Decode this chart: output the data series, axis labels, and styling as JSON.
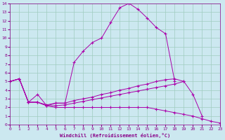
{
  "xlabel": "Windchill (Refroidissement éolien,°C)",
  "background_color": "#cce8f0",
  "grid_color": "#a0ccc0",
  "line_color": "#aa00aa",
  "xlim": [
    0,
    23
  ],
  "ylim": [
    0,
    14
  ],
  "xticks": [
    0,
    1,
    2,
    3,
    4,
    5,
    6,
    7,
    8,
    9,
    10,
    11,
    12,
    13,
    14,
    15,
    16,
    17,
    18,
    19,
    20,
    21,
    22,
    23
  ],
  "yticks": [
    0,
    1,
    2,
    3,
    4,
    5,
    6,
    7,
    8,
    9,
    10,
    11,
    12,
    13,
    14
  ],
  "series": [
    {
      "x": [
        0,
        1,
        2,
        3,
        4,
        5,
        6,
        7,
        8,
        9,
        10,
        11,
        12,
        13,
        14,
        15,
        16,
        17,
        18
      ],
      "y": [
        5.0,
        5.3,
        2.6,
        3.5,
        2.2,
        2.5,
        2.5,
        7.2,
        8.5,
        9.5,
        10.0,
        11.8,
        13.5,
        14.0,
        13.3,
        12.3,
        11.2,
        10.5,
        5.0
      ]
    },
    {
      "x": [
        0,
        1,
        2,
        3,
        4,
        5,
        6,
        7,
        8,
        9,
        10,
        11,
        12,
        13,
        14,
        15,
        16,
        17,
        18,
        19
      ],
      "y": [
        5.0,
        5.3,
        2.6,
        2.6,
        2.3,
        2.5,
        2.5,
        2.8,
        3.0,
        3.2,
        3.5,
        3.7,
        4.0,
        4.2,
        4.5,
        4.7,
        5.0,
        5.2,
        5.3,
        5.0
      ]
    },
    {
      "x": [
        0,
        1,
        2,
        3,
        4,
        5,
        6,
        7,
        8,
        9,
        10,
        11,
        12,
        13,
        14,
        15,
        16,
        17,
        18,
        19,
        20,
        21
      ],
      "y": [
        5.0,
        5.3,
        2.6,
        2.6,
        2.2,
        2.2,
        2.3,
        2.5,
        2.7,
        2.9,
        3.1,
        3.3,
        3.5,
        3.7,
        3.9,
        4.1,
        4.3,
        4.5,
        4.7,
        5.0,
        3.5,
        1.0
      ]
    },
    {
      "x": [
        0,
        1,
        2,
        3,
        4,
        5,
        6,
        7,
        8,
        9,
        10,
        11,
        12,
        13,
        14,
        15,
        16,
        17,
        18,
        19,
        20,
        21,
        22,
        23
      ],
      "y": [
        5.0,
        5.3,
        2.6,
        2.6,
        2.2,
        2.0,
        2.0,
        2.0,
        2.0,
        2.0,
        2.0,
        2.0,
        2.0,
        2.0,
        2.0,
        2.0,
        1.8,
        1.6,
        1.4,
        1.2,
        1.0,
        0.7,
        0.4,
        0.2
      ]
    }
  ]
}
